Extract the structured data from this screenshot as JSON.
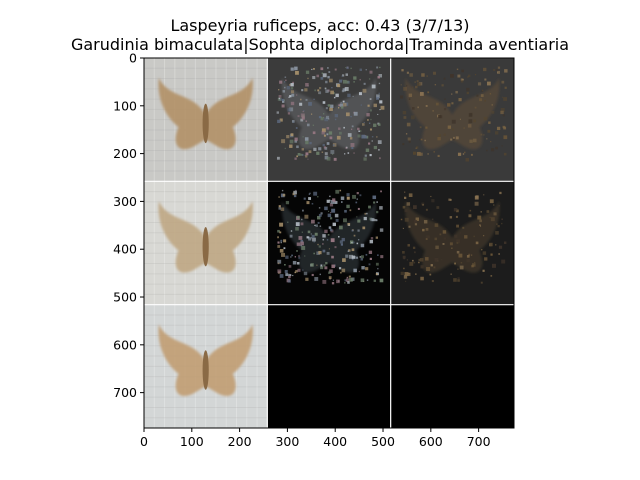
{
  "chart_data": {
    "type": "image-grid",
    "title": "Laspeyria ruficeps, acc: 0.43 (3/7/13)",
    "subtitle": "Garudinia bimaculata|Sophta diplochorda|Traminda aventiaria",
    "xlabel": "",
    "ylabel": "",
    "xlim": [
      0,
      774
    ],
    "ylim": [
      774,
      0
    ],
    "x_ticks": [
      0,
      100,
      200,
      300,
      400,
      500,
      600,
      700
    ],
    "y_ticks": [
      0,
      100,
      200,
      300,
      400,
      500,
      600,
      700
    ],
    "grid": false,
    "rows": 3,
    "cols": 3,
    "cells": [
      {
        "row": 0,
        "col": 0,
        "kind": "moth-photo",
        "bg": "#c9c9c6",
        "wing": "#b08d62"
      },
      {
        "row": 0,
        "col": 1,
        "kind": "noisy-map",
        "bg": "#3b3b3b",
        "wing": "#7a7f86"
      },
      {
        "row": 0,
        "col": 2,
        "kind": "dim-moth",
        "bg": "#3a3a3a",
        "wing": "#5e4b35"
      },
      {
        "row": 1,
        "col": 0,
        "kind": "moth-photo",
        "bg": "#d8d8d4",
        "wing": "#bda57f"
      },
      {
        "row": 1,
        "col": 1,
        "kind": "noisy-map",
        "bg": "#050505",
        "wing": "#55606b"
      },
      {
        "row": 1,
        "col": 2,
        "kind": "dim-moth",
        "bg": "#1c1c1c",
        "wing": "#4a3d2c"
      },
      {
        "row": 2,
        "col": 0,
        "kind": "moth-photo",
        "bg": "#d3d6d6",
        "wing": "#c09a6c"
      },
      {
        "row": 2,
        "col": 1,
        "kind": "blank",
        "bg": "#000000",
        "wing": ""
      },
      {
        "row": 2,
        "col": 2,
        "kind": "blank",
        "bg": "#000000",
        "wing": ""
      }
    ]
  }
}
